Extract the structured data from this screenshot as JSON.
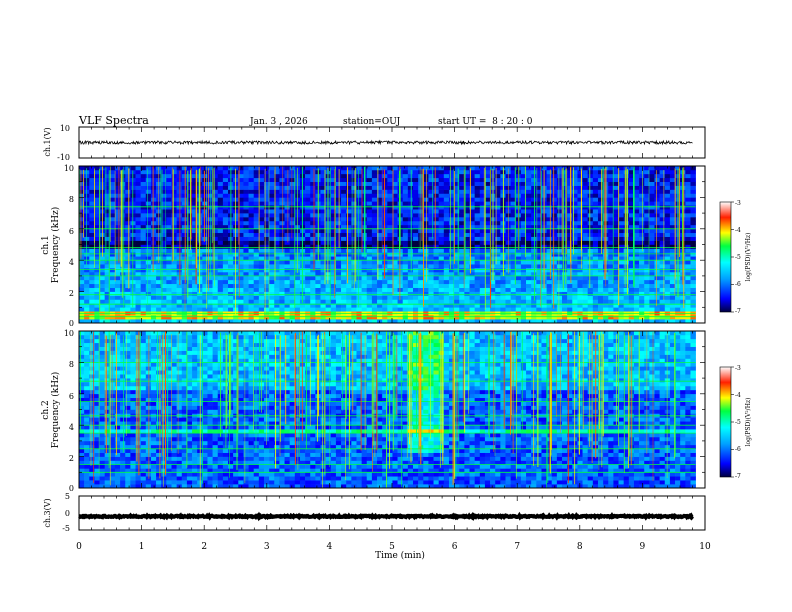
{
  "chart_data": {
    "type": "heatmap",
    "header": {
      "title": "VLF Spectra",
      "date": "Jan. 3 , 2026",
      "station": "station=OUJ",
      "start_ut": "start UT =  8 : 20 : 0"
    },
    "x_axis": {
      "label": "Time (min)",
      "range": [
        0,
        10
      ],
      "ticks": [
        "0",
        "1",
        "2",
        "3",
        "4",
        "5",
        "6",
        "7",
        "8",
        "9",
        "10"
      ]
    },
    "panels": [
      {
        "id": "ch1-waveform",
        "type": "line",
        "ylabel": "ch.1(V)",
        "ylim": [
          -10,
          10
        ],
        "ytick_labels": [
          "10",
          "-10"
        ],
        "trace_level": 0,
        "trace_noise_amplitude": 1
      },
      {
        "id": "ch1-spectrogram",
        "type": "heatmap",
        "ylabel_line1": "ch.1",
        "ylabel_line2": "Frequency (kHz)",
        "ylim": [
          0,
          10
        ],
        "ytick_labels": [
          "10",
          "8",
          "6",
          "4",
          "2",
          "0"
        ],
        "colorbar": {
          "label": "log(PSD)(V²/Hz)",
          "range": [
            -7,
            -3
          ],
          "ticks": [
            "-3",
            "-4",
            "-5",
            "-6",
            "-7"
          ]
        },
        "features": {
          "persistent_lines_khz": [
            0.4,
            0.6,
            1.2,
            1.8,
            3.0,
            3.4,
            4.0,
            4.4,
            4.8,
            6.0,
            7.4
          ],
          "bright_band_khz": [
            0.2,
            0.7
          ],
          "activity_region": "sferics above 5 kHz"
        }
      },
      {
        "id": "ch2-spectrogram",
        "type": "heatmap",
        "ylabel_line1": "ch.2",
        "ylabel_line2": "Frequency (kHz)",
        "ylim": [
          0,
          10
        ],
        "ytick_labels": [
          "10",
          "8",
          "6",
          "4",
          "2",
          "0"
        ],
        "colorbar": {
          "label": "log(PSD)(V²/Hz)",
          "range": [
            -7,
            -3
          ],
          "ticks": [
            "-3",
            "-4",
            "-5",
            "-6",
            "-7"
          ]
        },
        "features": {
          "persistent_lines_khz": [
            1.0,
            1.5,
            2.5,
            3.5,
            4.0,
            4.6,
            5.5,
            6.8,
            8.0
          ],
          "bright_band_khz": [
            3.3,
            3.7
          ],
          "activity_region": "diffuse emission above 6 kHz, burst near 5.5 min"
        }
      },
      {
        "id": "ch3-waveform",
        "type": "line",
        "ylabel": "ch.3(V)",
        "ylim": [
          -5,
          5
        ],
        "ytick_labels": [
          "5",
          "0",
          "-5"
        ],
        "trace_level": -1,
        "trace_noise_amplitude": 0.2
      }
    ]
  }
}
